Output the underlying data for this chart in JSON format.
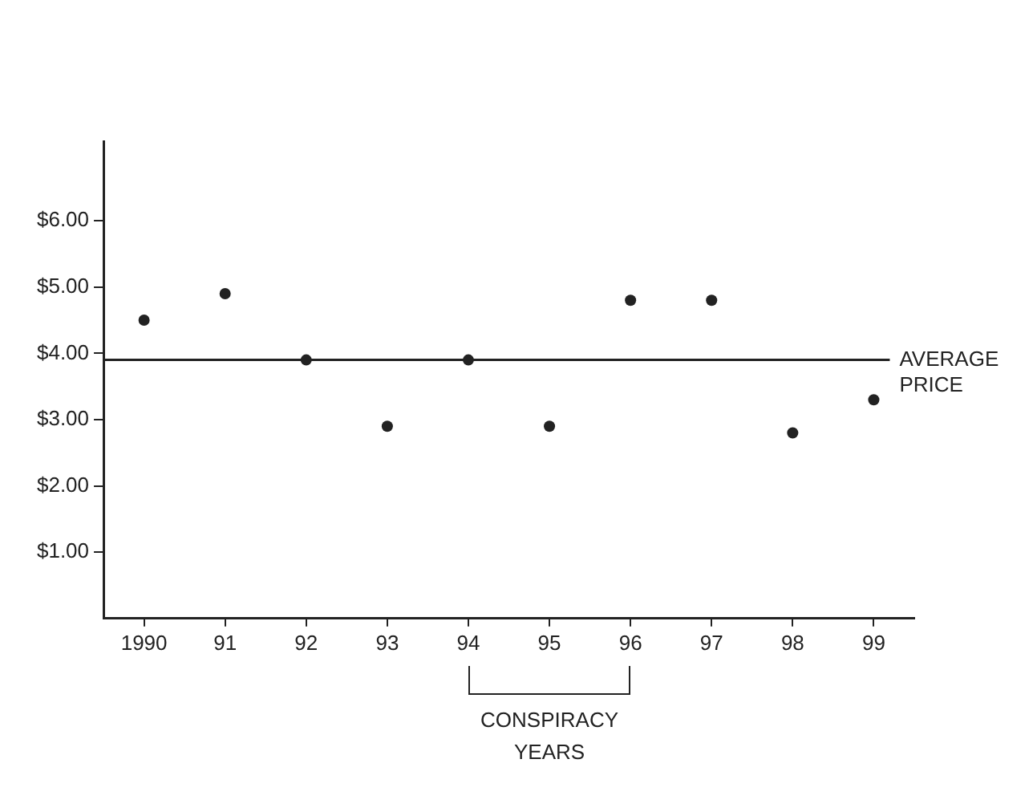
{
  "chart_data": {
    "type": "scatter",
    "categories": [
      "1990",
      "91",
      "92",
      "93",
      "94",
      "95",
      "96",
      "97",
      "98",
      "99"
    ],
    "series": [
      {
        "color": "#222222",
        "values": [
          4.5,
          4.9,
          3.9,
          2.9,
          3.9,
          2.9,
          4.8,
          4.8,
          2.8,
          3.3
        ]
      }
    ],
    "ylim": [
      0,
      7.2
    ],
    "yticks": [
      {
        "value": 1,
        "label": "$1.00"
      },
      {
        "value": 2,
        "label": "$2.00"
      },
      {
        "value": 3,
        "label": "$3.00"
      },
      {
        "value": 4,
        "label": "$4.00"
      },
      {
        "value": 5,
        "label": "$5.00"
      },
      {
        "value": 6,
        "label": "$6.00"
      }
    ],
    "ref_lines": [
      {
        "axis": "y",
        "value": 3.9,
        "label": "AVERAGE PRICE",
        "color": "#222222"
      }
    ],
    "annotations": [
      "CONSPIRACY YEARS"
    ],
    "grid": false,
    "legend": false,
    "marker": "circle"
  }
}
